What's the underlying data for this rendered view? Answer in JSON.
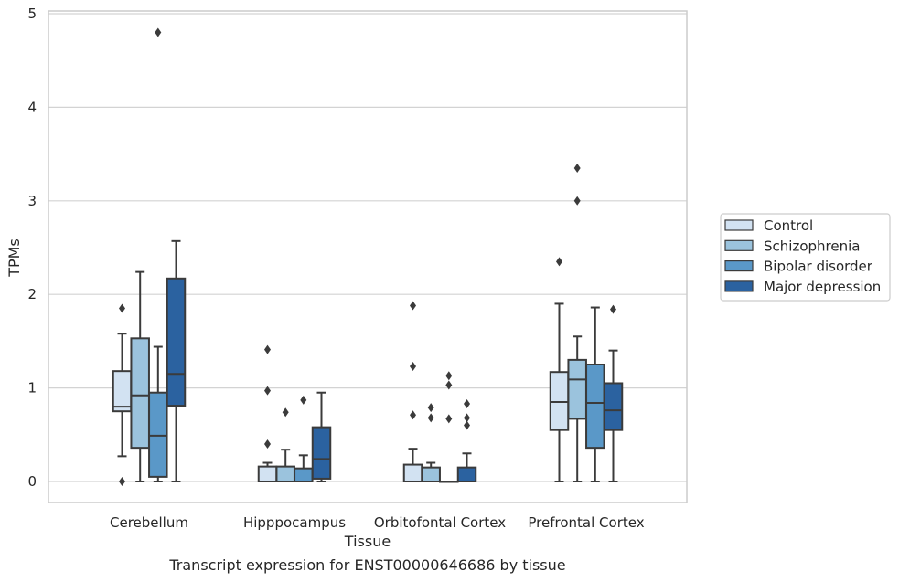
{
  "chart_data": {
    "type": "box",
    "xlabel": "Tissue",
    "ylabel": "TPMs",
    "caption": "Transcript expression for ENST00000646686 by tissue",
    "ylim": [
      -0.22,
      5.05
    ],
    "yticks": [
      0,
      1,
      2,
      3,
      4,
      5
    ],
    "grid": "horizontal",
    "legend_position": "right",
    "categories": [
      "Cerebellum",
      "Hipppocampus",
      "Orbitofontal Cortex",
      "Prefrontal Cortex"
    ],
    "series": [
      {
        "name": "Control",
        "color": "#d2e2f2",
        "boxes": [
          {
            "whislo": 0.27,
            "q1": 0.75,
            "med": 0.8,
            "q3": 1.18,
            "whishi": 1.58,
            "fliers": [
              1.85,
              0.0
            ]
          },
          {
            "whislo": 0.0,
            "q1": 0.0,
            "med": 0.0,
            "q3": 0.16,
            "whishi": 0.2,
            "fliers": [
              1.41,
              0.97,
              0.4
            ]
          },
          {
            "whislo": 0.0,
            "q1": 0.0,
            "med": 0.0,
            "q3": 0.18,
            "whishi": 0.35,
            "fliers": [
              1.88,
              1.23,
              0.71
            ]
          },
          {
            "whislo": 0.0,
            "q1": 0.55,
            "med": 0.85,
            "q3": 1.17,
            "whishi": 1.9,
            "fliers": [
              2.35
            ]
          }
        ]
      },
      {
        "name": "Schizophrenia",
        "color": "#9bc3dd",
        "boxes": [
          {
            "whislo": 0.0,
            "q1": 0.36,
            "med": 0.92,
            "q3": 1.53,
            "whishi": 2.24,
            "fliers": []
          },
          {
            "whislo": 0.0,
            "q1": 0.0,
            "med": 0.0,
            "q3": 0.16,
            "whishi": 0.34,
            "fliers": [
              0.74
            ]
          },
          {
            "whislo": 0.0,
            "q1": 0.0,
            "med": 0.0,
            "q3": 0.15,
            "whishi": 0.2,
            "fliers": [
              0.79,
              0.68
            ]
          },
          {
            "whislo": 0.0,
            "q1": 0.67,
            "med": 1.09,
            "q3": 1.3,
            "whishi": 1.55,
            "fliers": [
              3.35,
              3.0
            ]
          }
        ]
      },
      {
        "name": "Bipolar disorder",
        "color": "#5a98c8",
        "boxes": [
          {
            "whislo": 0.0,
            "q1": 0.05,
            "med": 0.49,
            "q3": 0.95,
            "whishi": 1.44,
            "fliers": [
              4.8
            ]
          },
          {
            "whislo": 0.0,
            "q1": 0.0,
            "med": 0.0,
            "q3": 0.14,
            "whishi": 0.28,
            "fliers": [
              0.87
            ]
          },
          {
            "whislo": 0.0,
            "q1": 0.0,
            "med": 0.0,
            "q3": 0.0,
            "whishi": 0.0,
            "fliers": [
              1.13,
              1.03,
              0.67
            ]
          },
          {
            "whislo": 0.0,
            "q1": 0.36,
            "med": 0.84,
            "q3": 1.25,
            "whishi": 1.86,
            "fliers": []
          }
        ]
      },
      {
        "name": "Major depression",
        "color": "#2b62a0",
        "boxes": [
          {
            "whislo": 0.0,
            "q1": 0.81,
            "med": 1.15,
            "q3": 2.17,
            "whishi": 2.57,
            "fliers": []
          },
          {
            "whislo": 0.0,
            "q1": 0.03,
            "med": 0.24,
            "q3": 0.58,
            "whishi": 0.95,
            "fliers": []
          },
          {
            "whislo": 0.0,
            "q1": 0.0,
            "med": 0.0,
            "q3": 0.15,
            "whishi": 0.3,
            "fliers": [
              0.83,
              0.68,
              0.6
            ]
          },
          {
            "whislo": 0.0,
            "q1": 0.55,
            "med": 0.76,
            "q3": 1.05,
            "whishi": 1.4,
            "fliers": [
              1.84
            ]
          }
        ]
      }
    ]
  }
}
